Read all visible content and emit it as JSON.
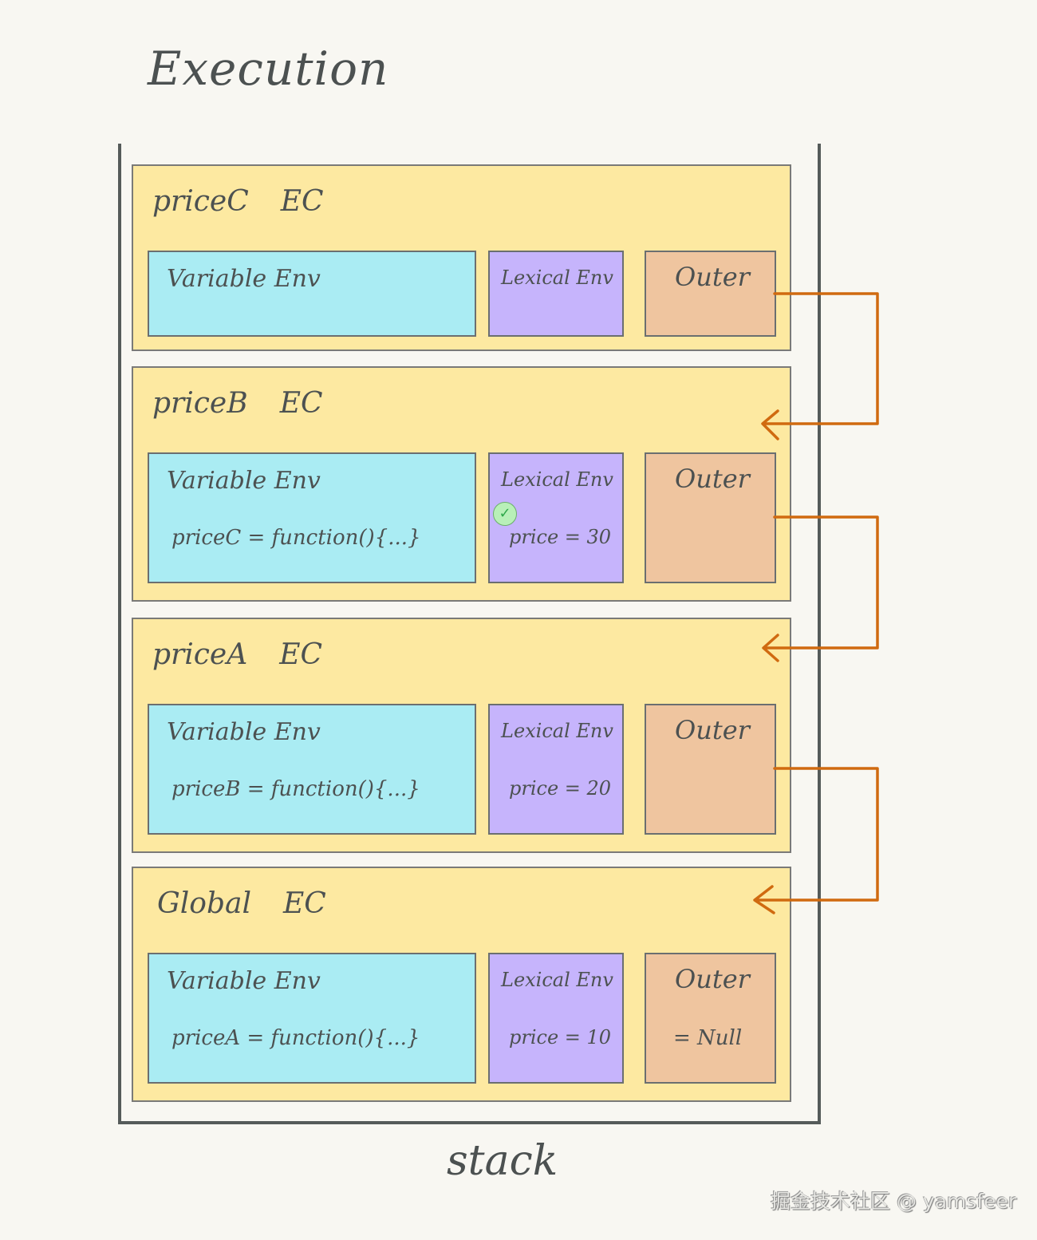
{
  "title": "Execution",
  "stack_label": "stack",
  "watermark": "掘金技术社区 @ yamsfeer",
  "colors": {
    "context": "#fde9a1",
    "variable_env": "#aaecf3",
    "lexical_env": "#c6b4fc",
    "outer": "#efc59f",
    "arrow": "#d06a10"
  },
  "contexts": [
    {
      "name": "priceC",
      "suffix": "EC",
      "variable_env": {
        "label": "Variable Env",
        "value": ""
      },
      "lexical_env": {
        "label": "Lexical Env",
        "value": ""
      },
      "outer": {
        "label": "Outer",
        "value": ""
      }
    },
    {
      "name": "priceB",
      "suffix": "EC",
      "variable_env": {
        "label": "Variable Env",
        "value": "priceC = function(){...}"
      },
      "lexical_env": {
        "label": "Lexical Env",
        "value": "price = 30",
        "check_icon": "check-circle-icon"
      },
      "outer": {
        "label": "Outer",
        "value": ""
      }
    },
    {
      "name": "priceA",
      "suffix": "EC",
      "variable_env": {
        "label": "Variable Env",
        "value": "priceB = function(){...}"
      },
      "lexical_env": {
        "label": "Lexical Env",
        "value": "price = 20"
      },
      "outer": {
        "label": "Outer",
        "value": ""
      }
    },
    {
      "name": "Global",
      "suffix": "EC",
      "variable_env": {
        "label": "Variable Env",
        "value": "priceA = function(){...}"
      },
      "lexical_env": {
        "label": "Lexical Env",
        "value": "price = 10"
      },
      "outer": {
        "label": "Outer",
        "value": "= Null"
      }
    }
  ]
}
